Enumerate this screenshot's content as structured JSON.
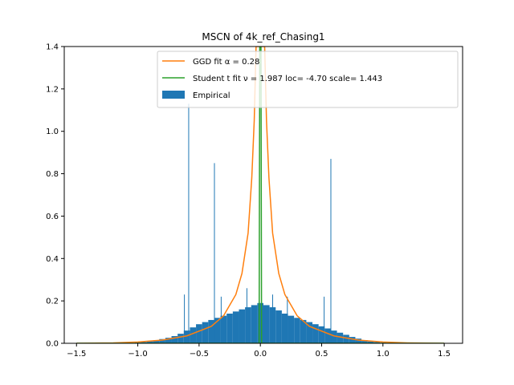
{
  "chart_data": {
    "type": "histogram",
    "title": "MSCN of 4k_ref_Chasing1",
    "xlabel": "",
    "ylabel": "",
    "xlim": [
      -1.6,
      1.65
    ],
    "ylim": [
      0,
      1.4
    ],
    "xticks": [
      -1.5,
      -1.0,
      -0.5,
      0.0,
      0.5,
      1.0,
      1.5
    ],
    "xtick_labels": [
      "−1.5",
      "−1.0",
      "−0.5",
      "0.0",
      "0.5",
      "1.0",
      "1.5"
    ],
    "yticks": [
      0.0,
      0.2,
      0.4,
      0.6,
      0.8,
      1.0,
      1.2,
      1.4
    ],
    "ytick_labels": [
      "0.0",
      "0.2",
      "0.4",
      "0.6",
      "0.8",
      "1.0",
      "1.2",
      "1.4"
    ],
    "legend_position": "top-right",
    "legend": [
      {
        "label": "GGD fit α = 0.28",
        "kind": "line",
        "color": "#ff7f0e"
      },
      {
        "label": "Student t fit ν = 1.987 loc= -4.70 scale= 1.443",
        "kind": "line",
        "color": "#2ca02c"
      },
      {
        "label": "Empirical",
        "kind": "patch",
        "color": "#1f77b4"
      }
    ],
    "series": [
      {
        "name": "Empirical",
        "kind": "histogram",
        "color": "#1f77b4",
        "bins": [
          {
            "x": -1.0,
            "y": 0.004
          },
          {
            "x": -0.95,
            "y": 0.006
          },
          {
            "x": -0.9,
            "y": 0.01
          },
          {
            "x": -0.85,
            "y": 0.014
          },
          {
            "x": -0.8,
            "y": 0.02
          },
          {
            "x": -0.75,
            "y": 0.026
          },
          {
            "x": -0.7,
            "y": 0.034
          },
          {
            "x": -0.65,
            "y": 0.045
          },
          {
            "x": -0.6,
            "y": 0.06
          },
          {
            "x": -0.55,
            "y": 0.075
          },
          {
            "x": -0.5,
            "y": 0.09
          },
          {
            "x": -0.45,
            "y": 0.1
          },
          {
            "x": -0.4,
            "y": 0.11
          },
          {
            "x": -0.35,
            "y": 0.12
          },
          {
            "x": -0.3,
            "y": 0.13
          },
          {
            "x": -0.25,
            "y": 0.14
          },
          {
            "x": -0.2,
            "y": 0.15
          },
          {
            "x": -0.15,
            "y": 0.16
          },
          {
            "x": -0.1,
            "y": 0.17
          },
          {
            "x": -0.05,
            "y": 0.18
          },
          {
            "x": 0.0,
            "y": 0.19
          },
          {
            "x": 0.05,
            "y": 0.18
          },
          {
            "x": 0.1,
            "y": 0.17
          },
          {
            "x": 0.15,
            "y": 0.155
          },
          {
            "x": 0.2,
            "y": 0.14
          },
          {
            "x": 0.25,
            "y": 0.13
          },
          {
            "x": 0.3,
            "y": 0.12
          },
          {
            "x": 0.35,
            "y": 0.11
          },
          {
            "x": 0.4,
            "y": 0.1
          },
          {
            "x": 0.45,
            "y": 0.09
          },
          {
            "x": 0.5,
            "y": 0.08
          },
          {
            "x": 0.55,
            "y": 0.07
          },
          {
            "x": 0.6,
            "y": 0.06
          },
          {
            "x": 0.65,
            "y": 0.05
          },
          {
            "x": 0.7,
            "y": 0.04
          },
          {
            "x": 0.75,
            "y": 0.03
          },
          {
            "x": 0.8,
            "y": 0.022
          },
          {
            "x": 0.85,
            "y": 0.015
          },
          {
            "x": 0.9,
            "y": 0.009
          },
          {
            "x": 0.95,
            "y": 0.006
          },
          {
            "x": 1.0,
            "y": 0.003
          }
        ],
        "spikes": [
          {
            "x": -0.585,
            "y": 1.13
          },
          {
            "x": -0.375,
            "y": 0.85
          },
          {
            "x": 0.575,
            "y": 0.87
          },
          {
            "x": -0.62,
            "y": 0.23
          },
          {
            "x": -0.32,
            "y": 0.22
          },
          {
            "x": 0.22,
            "y": 0.22
          },
          {
            "x": 0.52,
            "y": 0.22
          },
          {
            "x": -0.11,
            "y": 0.26
          },
          {
            "x": 0.1,
            "y": 0.23
          }
        ]
      },
      {
        "name": "GGD fit α = 0.28",
        "kind": "line",
        "color": "#ff7f0e",
        "points": [
          {
            "x": -1.5,
            "y": 0.0
          },
          {
            "x": -1.2,
            "y": 0.002
          },
          {
            "x": -1.0,
            "y": 0.006
          },
          {
            "x": -0.8,
            "y": 0.015
          },
          {
            "x": -0.6,
            "y": 0.035
          },
          {
            "x": -0.4,
            "y": 0.08
          },
          {
            "x": -0.3,
            "y": 0.13
          },
          {
            "x": -0.2,
            "y": 0.23
          },
          {
            "x": -0.15,
            "y": 0.33
          },
          {
            "x": -0.1,
            "y": 0.52
          },
          {
            "x": -0.07,
            "y": 0.78
          },
          {
            "x": -0.05,
            "y": 1.05
          },
          {
            "x": -0.035,
            "y": 1.4
          },
          {
            "x": 0.035,
            "y": 1.4
          },
          {
            "x": 0.05,
            "y": 1.05
          },
          {
            "x": 0.07,
            "y": 0.78
          },
          {
            "x": 0.1,
            "y": 0.52
          },
          {
            "x": 0.15,
            "y": 0.33
          },
          {
            "x": 0.2,
            "y": 0.23
          },
          {
            "x": 0.3,
            "y": 0.13
          },
          {
            "x": 0.4,
            "y": 0.08
          },
          {
            "x": 0.6,
            "y": 0.035
          },
          {
            "x": 0.8,
            "y": 0.015
          },
          {
            "x": 1.0,
            "y": 0.006
          },
          {
            "x": 1.2,
            "y": 0.002
          },
          {
            "x": 1.5,
            "y": 0.0
          }
        ]
      },
      {
        "name": "Student t fit ν = 1.987 loc= -4.70 scale= 1.443",
        "kind": "line",
        "color": "#2ca02c",
        "points": [
          {
            "x": -1.5,
            "y": 0.0
          },
          {
            "x": -0.01,
            "y": 0.0
          },
          {
            "x": -0.005,
            "y": 1.4
          },
          {
            "x": 0.005,
            "y": 1.4
          },
          {
            "x": 0.01,
            "y": 0.0
          },
          {
            "x": 1.5,
            "y": 0.0
          }
        ]
      }
    ]
  }
}
